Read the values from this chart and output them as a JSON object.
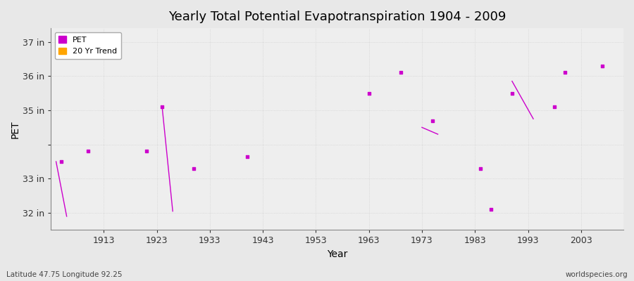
{
  "title": "Yearly Total Potential Evapotranspiration 1904 - 2009",
  "xlabel": "Year",
  "ylabel": "PET",
  "subtitle_left": "Latitude 47.75 Longitude 92.25",
  "subtitle_right": "worldspecies.org",
  "legend_pet": "PET",
  "legend_trend": "20 Yr Trend",
  "pet_color": "#CC00CC",
  "trend_color": "#FFA500",
  "bg_color": "#E8E8E8",
  "plot_bg_color": "#EEEEEE",
  "ylim": [
    31.5,
    37.4
  ],
  "xlim": [
    1903,
    2011
  ],
  "ytick_labels": [
    "32 in",
    "33 in",
    "",
    "35 in",
    "36 in",
    "37 in"
  ],
  "ytick_values": [
    32,
    33,
    34,
    35,
    36,
    37
  ],
  "xtick_values": [
    1913,
    1923,
    1933,
    1943,
    1953,
    1963,
    1973,
    1983,
    1993,
    2003
  ],
  "pet_data": [
    [
      1905,
      33.5
    ],
    [
      1910,
      33.8
    ],
    [
      1921,
      33.8
    ],
    [
      1924,
      35.1
    ],
    [
      1930,
      33.3
    ],
    [
      1940,
      33.65
    ],
    [
      1963,
      35.5
    ],
    [
      1969,
      36.1
    ],
    [
      1975,
      34.7
    ],
    [
      1984,
      33.3
    ],
    [
      1986,
      32.1
    ],
    [
      1990,
      35.5
    ],
    [
      1998,
      35.1
    ],
    [
      2000,
      36.1
    ],
    [
      2007,
      36.3
    ]
  ],
  "trend_lines": [
    {
      "x": [
        1905,
        1905
      ],
      "y": [
        33.5,
        31.9
      ]
    },
    {
      "x": [
        1924,
        1926
      ],
      "y": [
        35.1,
        32.0
      ]
    },
    {
      "x": [
        1975,
        1977
      ],
      "y": [
        34.7,
        34.4
      ]
    },
    {
      "x": [
        1990,
        1994
      ],
      "y": [
        35.85,
        34.75
      ]
    }
  ]
}
